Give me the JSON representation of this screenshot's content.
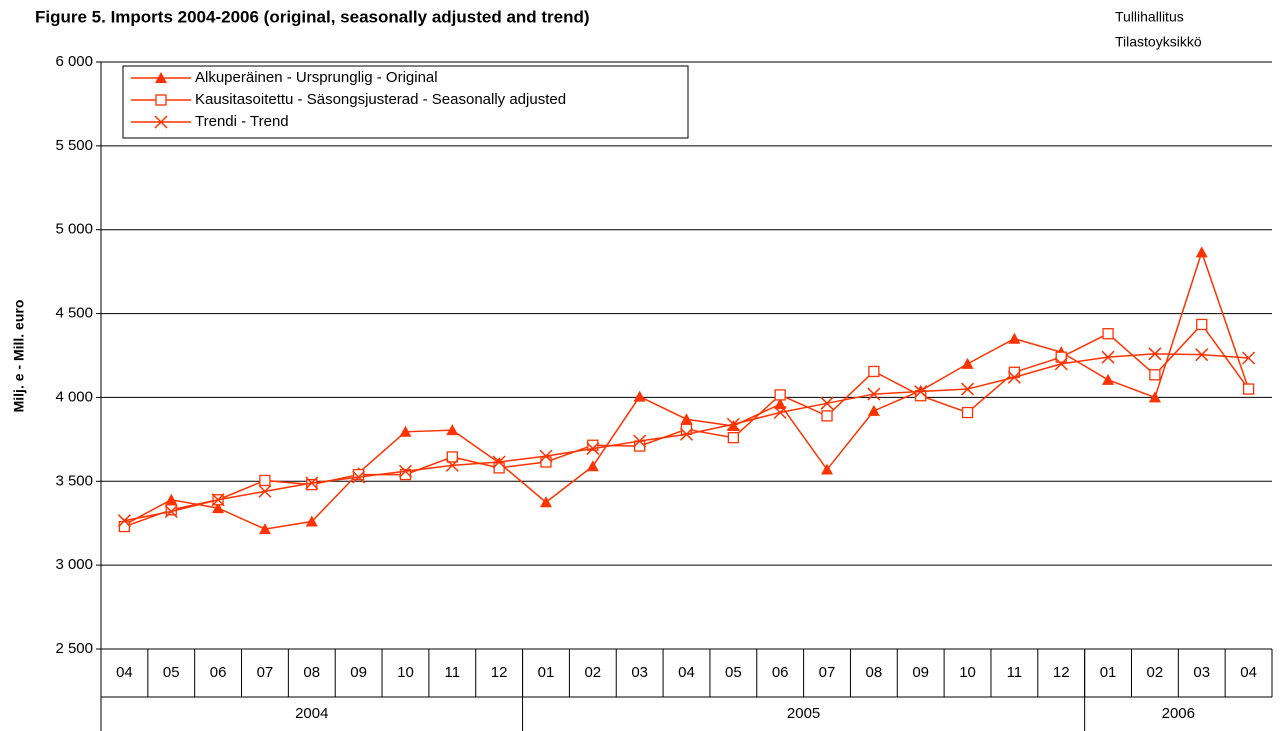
{
  "chart_data": {
    "type": "line",
    "title": "Figure 5. Imports 2004-2006 (original, seasonally adjusted and trend)",
    "source": [
      "Tullihallitus",
      "Tilastoyksikkö"
    ],
    "y_label": "Milj. e - Mill. euro",
    "categories": [
      "04",
      "05",
      "06",
      "07",
      "08",
      "09",
      "10",
      "11",
      "12",
      "01",
      "02",
      "03",
      "04",
      "05",
      "06",
      "07",
      "08",
      "09",
      "10",
      "11",
      "12",
      "01",
      "02",
      "03",
      "04"
    ],
    "category_groups": [
      {
        "label": "2004",
        "span": 9
      },
      {
        "label": "2005",
        "span": 12
      },
      {
        "label": "2006",
        "span": 4
      }
    ],
    "series": [
      {
        "name": "Alkuperäinen - Ursprunglig - Original",
        "color": "#ff3300",
        "marker": "triangle",
        "values": [
          3240,
          3390,
          3340,
          3215,
          3260,
          3550,
          3795,
          3805,
          3610,
          3375,
          3590,
          4005,
          3870,
          3830,
          3960,
          3570,
          3920,
          4040,
          4200,
          4350,
          4270,
          4105,
          4000,
          4865,
          4050
        ]
      },
      {
        "name": "Kausitasoitettu - Säsongsjusterad - Seasonally adjusted",
        "color": "#ff3300",
        "marker": "square",
        "values": [
          3230,
          3330,
          3390,
          3505,
          3480,
          3540,
          3540,
          3645,
          3580,
          3615,
          3715,
          3710,
          3810,
          3760,
          4015,
          3890,
          4155,
          4010,
          3910,
          4150,
          4240,
          4380,
          4135,
          4435,
          4050
        ]
      },
      {
        "name": "Trendi - Trend",
        "color": "#ff3300",
        "marker": "x",
        "values": [
          3265,
          3320,
          3390,
          3440,
          3490,
          3525,
          3560,
          3595,
          3615,
          3650,
          3695,
          3740,
          3780,
          3840,
          3910,
          3965,
          4020,
          4035,
          4050,
          4120,
          4200,
          4240,
          4260,
          4255,
          4235
        ]
      }
    ],
    "ylim": [
      2500,
      6000
    ],
    "yticks": [
      {
        "value": 2500,
        "label": "2 500"
      },
      {
        "value": 3000,
        "label": "3 000"
      },
      {
        "value": 3500,
        "label": "3 500"
      },
      {
        "value": 4000,
        "label": "4 000"
      },
      {
        "value": 4500,
        "label": "4 500"
      },
      {
        "value": 5000,
        "label": "5 000"
      },
      {
        "value": 5500,
        "label": "5 500"
      },
      {
        "value": 6000,
        "label": "6 000"
      }
    ],
    "grid": true,
    "legend": "top-left"
  }
}
